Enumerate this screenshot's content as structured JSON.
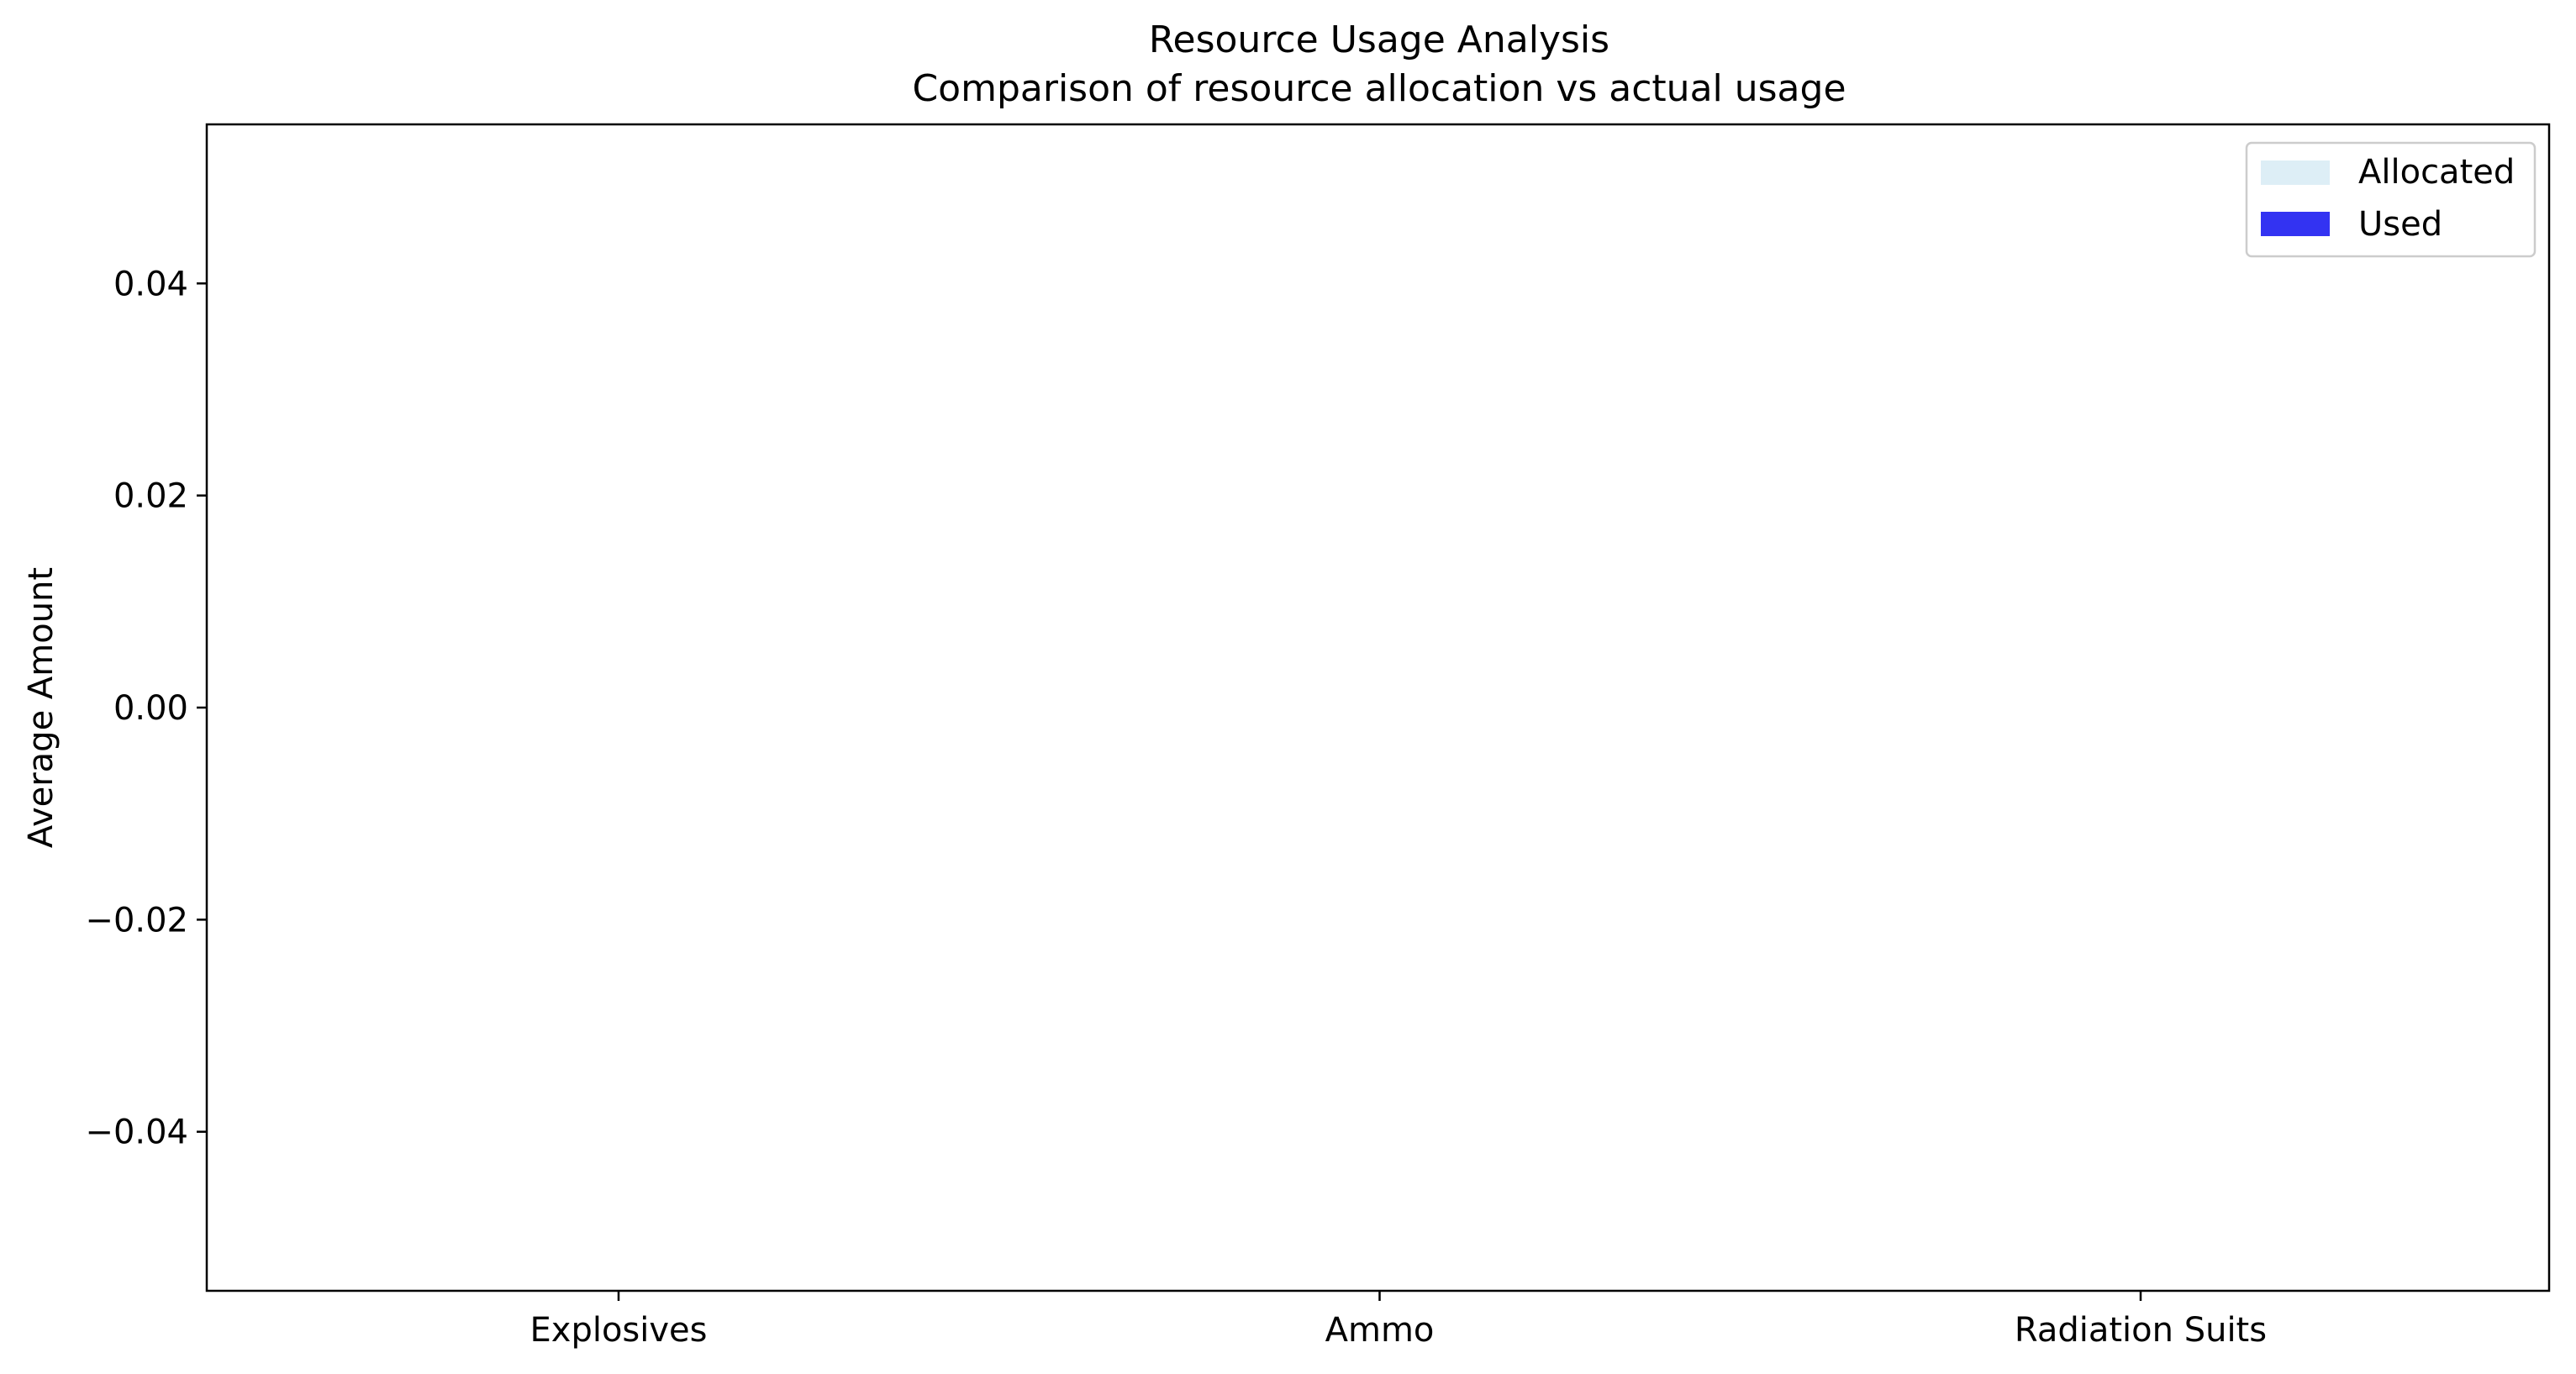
{
  "chart_data": {
    "type": "bar",
    "title": "Resource Usage Analysis",
    "subtitle": "Comparison of resource allocation vs actual usage",
    "xlabel": "",
    "ylabel": "Average Amount",
    "categories": [
      "Explosives",
      "Ammo",
      "Radiation Suits"
    ],
    "series": [
      {
        "name": "Allocated",
        "color": "#ddeef6",
        "values": [
          0,
          0,
          0
        ]
      },
      {
        "name": "Used",
        "color": "#3333f2",
        "values": [
          0,
          0,
          0
        ]
      }
    ],
    "ylim": [
      -0.055,
      0.055
    ],
    "yticks": [
      -0.04,
      -0.02,
      0.0,
      0.02,
      0.04
    ],
    "ytick_labels": [
      "−0.04",
      "−0.02",
      "0.00",
      "0.02",
      "0.04"
    ],
    "grid": false,
    "legend_position": "top-right"
  }
}
